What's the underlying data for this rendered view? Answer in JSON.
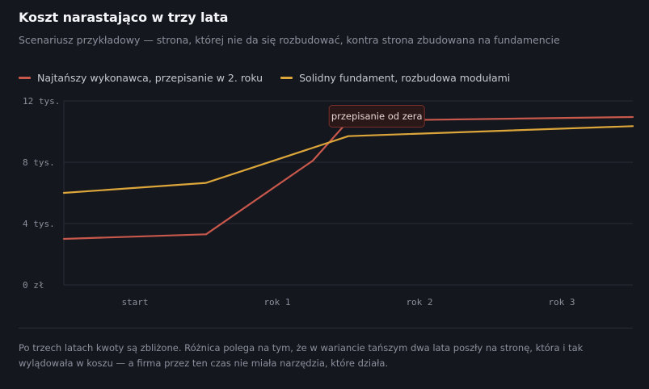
{
  "header": {
    "title": "Koszt narastająco w trzy lata",
    "subtitle": "Scenariusz przykładowy — strona, której nie da się rozbudować, kontra strona zbudowana na fundamencie"
  },
  "footnote": "Po trzech latach kwoty są zbliżone. Różnica polega na tym, że w wariancie tańszym dwa lata poszły na stronę, która i tak wylądowała w koszu — a firma przez ten czas nie miała narzędzia, które działa.",
  "colors": {
    "background": "#14171e",
    "grid": "#2a2e38",
    "series_red": "#c8584c",
    "series_amber": "#dca63a"
  },
  "chart_data": {
    "type": "line",
    "title": "Koszt narastająco w trzy lata",
    "categories": [
      "start",
      "rok 1",
      "rok 2",
      "rok 3"
    ],
    "x": [
      0,
      1,
      2,
      3,
      3.5
    ],
    "ylim": [
      0,
      12000
    ],
    "y_ticks": [
      {
        "value": 0,
        "label": "0 zł"
      },
      {
        "value": 4000,
        "label": "4 tys."
      },
      {
        "value": 8000,
        "label": "8 tys."
      },
      {
        "value": 12000,
        "label": "12 tys."
      }
    ],
    "grid": true,
    "legend_position": "top-left",
    "series": [
      {
        "name": "Najtańszy wykonawca, przepisanie w 2. roku",
        "color": "#c8584c",
        "x": [
          0,
          1,
          1.75,
          2,
          3.5
        ],
        "values": [
          3000,
          3300,
          8100,
          10700,
          10950
        ]
      },
      {
        "name": "Solidny fundament, rozbudowa modułami",
        "color": "#dca63a",
        "x": [
          0,
          1,
          2,
          3.5
        ],
        "values": [
          6000,
          6650,
          9700,
          10350
        ]
      }
    ],
    "annotations": [
      {
        "text": "przepisanie od zera",
        "x": 2.2,
        "y": 11000
      }
    ]
  }
}
